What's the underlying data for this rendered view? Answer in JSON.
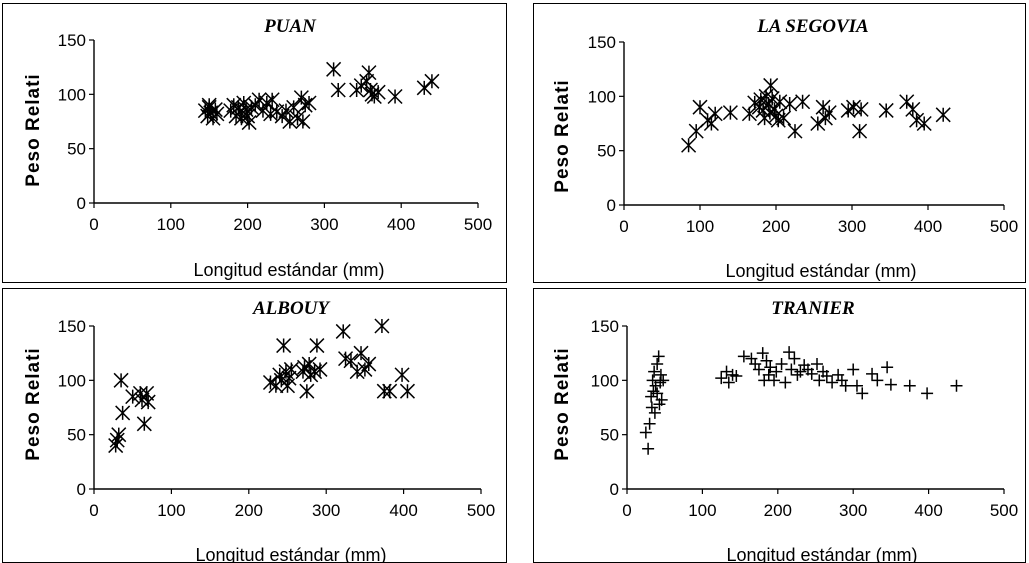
{
  "chart_data": [
    {
      "type": "scatter",
      "title": "PUAN",
      "xlabel": "Longitud estándar (mm)",
      "ylabel": "Peso Relati",
      "xlim": [
        0,
        500
      ],
      "ylim": [
        0,
        150
      ],
      "xticks": [
        "0",
        "100",
        "200",
        "300",
        "400",
        "500"
      ],
      "yticks": [
        "0",
        "50",
        "100",
        "150"
      ],
      "marker": "x-star",
      "grid": false,
      "points": [
        [
          145,
          85
        ],
        [
          148,
          80
        ],
        [
          150,
          88
        ],
        [
          152,
          83
        ],
        [
          155,
          78
        ],
        [
          158,
          86
        ],
        [
          150,
          90
        ],
        [
          160,
          82
        ],
        [
          178,
          85
        ],
        [
          182,
          90
        ],
        [
          185,
          80
        ],
        [
          188,
          88
        ],
        [
          190,
          84
        ],
        [
          192,
          78
        ],
        [
          195,
          92
        ],
        [
          198,
          86
        ],
        [
          200,
          80
        ],
        [
          202,
          74
        ],
        [
          205,
          88
        ],
        [
          210,
          90
        ],
        [
          215,
          95
        ],
        [
          220,
          85
        ],
        [
          225,
          92
        ],
        [
          230,
          82
        ],
        [
          232,
          95
        ],
        [
          238,
          84
        ],
        [
          245,
          80
        ],
        [
          250,
          85
        ],
        [
          255,
          75
        ],
        [
          260,
          88
        ],
        [
          265,
          78
        ],
        [
          270,
          97
        ],
        [
          272,
          75
        ],
        [
          275,
          90
        ],
        [
          280,
          92
        ],
        [
          312,
          123
        ],
        [
          318,
          104
        ],
        [
          342,
          104
        ],
        [
          348,
          108
        ],
        [
          355,
          112
        ],
        [
          358,
          120
        ],
        [
          360,
          104
        ],
        [
          362,
          100
        ],
        [
          365,
          98
        ],
        [
          370,
          102
        ],
        [
          392,
          98
        ],
        [
          430,
          106
        ],
        [
          440,
          112
        ]
      ]
    },
    {
      "type": "scatter",
      "title": "LA SEGOVIA",
      "xlabel": "Longitud estándar (mm)",
      "ylabel": "Peso Relati",
      "xlim": [
        0,
        500
      ],
      "ylim": [
        0,
        150
      ],
      "xticks": [
        "0",
        "100",
        "200",
        "300",
        "400",
        "500"
      ],
      "yticks": [
        "0",
        "50",
        "100",
        "150"
      ],
      "marker": "x-star",
      "grid": false,
      "points": [
        [
          85,
          55
        ],
        [
          95,
          68
        ],
        [
          100,
          90
        ],
        [
          110,
          78
        ],
        [
          115,
          75
        ],
        [
          120,
          84
        ],
        [
          140,
          85
        ],
        [
          165,
          84
        ],
        [
          172,
          94
        ],
        [
          178,
          90
        ],
        [
          180,
          97
        ],
        [
          183,
          87
        ],
        [
          185,
          80
        ],
        [
          187,
          100
        ],
        [
          190,
          93
        ],
        [
          192,
          85
        ],
        [
          193,
          110
        ],
        [
          195,
          98
        ],
        [
          198,
          88
        ],
        [
          200,
          82
        ],
        [
          203,
          78
        ],
        [
          205,
          95
        ],
        [
          210,
          80
        ],
        [
          218,
          93
        ],
        [
          225,
          68
        ],
        [
          235,
          95
        ],
        [
          255,
          75
        ],
        [
          262,
          90
        ],
        [
          265,
          80
        ],
        [
          270,
          85
        ],
        [
          295,
          87
        ],
        [
          302,
          90
        ],
        [
          310,
          68
        ],
        [
          312,
          88
        ],
        [
          345,
          87
        ],
        [
          372,
          95
        ],
        [
          380,
          88
        ],
        [
          385,
          78
        ],
        [
          395,
          75
        ],
        [
          420,
          83
        ]
      ]
    },
    {
      "type": "scatter",
      "title": "ALBOUY",
      "xlabel": "Longitud estándar (mm)",
      "ylabel": "Peso Relati",
      "xlim": [
        0,
        500
      ],
      "ylim": [
        0,
        150
      ],
      "xticks": [
        "0",
        "100",
        "200",
        "300",
        "400",
        "500"
      ],
      "yticks": [
        "0",
        "50",
        "100",
        "150"
      ],
      "marker": "x-star",
      "grid": false,
      "points": [
        [
          28,
          40
        ],
        [
          30,
          45
        ],
        [
          32,
          50
        ],
        [
          35,
          100
        ],
        [
          37,
          70
        ],
        [
          50,
          85
        ],
        [
          60,
          88
        ],
        [
          62,
          82
        ],
        [
          65,
          60
        ],
        [
          68,
          88
        ],
        [
          70,
          80
        ],
        [
          228,
          98
        ],
        [
          235,
          95
        ],
        [
          240,
          105
        ],
        [
          242,
          100
        ],
        [
          245,
          132
        ],
        [
          248,
          108
        ],
        [
          250,
          95
        ],
        [
          252,
          102
        ],
        [
          255,
          110
        ],
        [
          270,
          108
        ],
        [
          272,
          112
        ],
        [
          275,
          90
        ],
        [
          278,
          115
        ],
        [
          280,
          105
        ],
        [
          285,
          108
        ],
        [
          288,
          132
        ],
        [
          292,
          110
        ],
        [
          322,
          145
        ],
        [
          325,
          120
        ],
        [
          332,
          118
        ],
        [
          340,
          108
        ],
        [
          345,
          125
        ],
        [
          350,
          110
        ],
        [
          355,
          115
        ],
        [
          372,
          150
        ],
        [
          375,
          90
        ],
        [
          382,
          90
        ],
        [
          398,
          105
        ],
        [
          405,
          90
        ]
      ]
    },
    {
      "type": "scatter",
      "title": "TRANIER",
      "xlabel": "Longitud estándar (mm)",
      "ylabel": "Peso Relati",
      "xlim": [
        0,
        500
      ],
      "ylim": [
        0,
        150
      ],
      "xticks": [
        "0",
        "100",
        "200",
        "300",
        "400",
        "500"
      ],
      "yticks": [
        "0",
        "50",
        "100",
        "150"
      ],
      "marker": "plus",
      "grid": false,
      "points": [
        [
          25,
          52
        ],
        [
          28,
          37
        ],
        [
          30,
          60
        ],
        [
          32,
          85
        ],
        [
          33,
          75
        ],
        [
          34,
          100
        ],
        [
          35,
          90
        ],
        [
          36,
          108
        ],
        [
          37,
          70
        ],
        [
          38,
          95
        ],
        [
          40,
          115
        ],
        [
          40,
          88
        ],
        [
          42,
          122
        ],
        [
          43,
          78
        ],
        [
          44,
          98
        ],
        [
          45,
          105
        ],
        [
          46,
          82
        ],
        [
          48,
          100
        ],
        [
          125,
          102
        ],
        [
          132,
          108
        ],
        [
          135,
          98
        ],
        [
          140,
          105
        ],
        [
          145,
          104
        ],
        [
          155,
          122
        ],
        [
          165,
          120
        ],
        [
          170,
          115
        ],
        [
          175,
          110
        ],
        [
          180,
          125
        ],
        [
          182,
          100
        ],
        [
          185,
          118
        ],
        [
          188,
          105
        ],
        [
          190,
          112
        ],
        [
          195,
          100
        ],
        [
          198,
          108
        ],
        [
          205,
          115
        ],
        [
          210,
          98
        ],
        [
          215,
          126
        ],
        [
          218,
          110
        ],
        [
          222,
          120
        ],
        [
          226,
          105
        ],
        [
          230,
          108
        ],
        [
          235,
          114
        ],
        [
          240,
          110
        ],
        [
          245,
          106
        ],
        [
          252,
          115
        ],
        [
          255,
          100
        ],
        [
          260,
          108
        ],
        [
          265,
          104
        ],
        [
          272,
          98
        ],
        [
          280,
          105
        ],
        [
          285,
          100
        ],
        [
          290,
          95
        ],
        [
          300,
          110
        ],
        [
          305,
          95
        ],
        [
          312,
          88
        ],
        [
          325,
          106
        ],
        [
          332,
          100
        ],
        [
          345,
          112
        ],
        [
          350,
          96
        ],
        [
          375,
          95
        ],
        [
          398,
          88
        ],
        [
          437,
          95
        ]
      ]
    }
  ]
}
